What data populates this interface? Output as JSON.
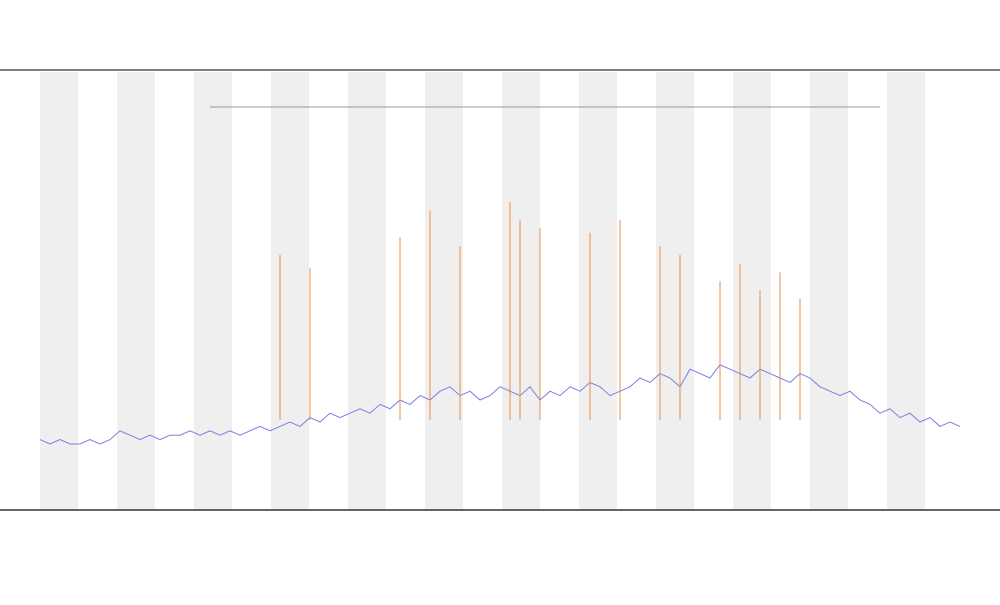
{
  "chart_data": {
    "type": "line",
    "x": [
      0,
      1,
      2,
      3,
      4,
      5,
      6,
      7,
      8,
      9,
      10,
      11,
      12,
      13,
      14,
      15,
      16,
      17,
      18,
      19,
      20,
      21,
      22,
      23,
      24,
      25,
      26,
      27,
      28,
      29,
      30,
      31,
      32,
      33,
      34,
      35,
      36,
      37,
      38,
      39,
      40,
      41,
      42,
      43,
      44,
      45,
      46,
      47,
      48,
      49,
      50,
      51,
      52,
      53,
      54,
      55,
      56,
      57,
      58,
      59,
      60,
      61,
      62,
      63,
      64,
      65,
      66,
      67,
      68,
      69,
      70,
      71,
      72,
      73,
      74,
      75,
      76,
      77,
      78,
      79,
      80,
      81,
      82,
      83,
      84,
      85,
      86,
      87,
      88,
      89,
      90,
      91,
      92
    ],
    "xlim": [
      0,
      92
    ],
    "ylim": [
      0,
      100
    ],
    "series": [
      {
        "color": "#7b7ee0",
        "mark": "line",
        "values": [
          16,
          15,
          16,
          15,
          15,
          16,
          15,
          16,
          18,
          17,
          16,
          17,
          16,
          17,
          17,
          18,
          17,
          18,
          17,
          18,
          17,
          18,
          19,
          18,
          19,
          20,
          19,
          21,
          20,
          22,
          21,
          22,
          23,
          22,
          24,
          23,
          25,
          24,
          26,
          25,
          27,
          28,
          26,
          27,
          25,
          26,
          28,
          27,
          26,
          28,
          25,
          27,
          26,
          28,
          27,
          29,
          28,
          26,
          27,
          28,
          30,
          29,
          31,
          30,
          28,
          32,
          31,
          30,
          33,
          32,
          31,
          30,
          32,
          31,
          30,
          29,
          31,
          30,
          28,
          27,
          26,
          27,
          25,
          24,
          22,
          23,
          21,
          22,
          20,
          21,
          19,
          20,
          19
        ]
      },
      {
        "color": "#f08a3a",
        "mark": "stem",
        "values": [
          null,
          null,
          null,
          null,
          null,
          null,
          null,
          null,
          null,
          null,
          null,
          null,
          null,
          null,
          null,
          null,
          null,
          null,
          null,
          null,
          null,
          null,
          null,
          null,
          58,
          null,
          null,
          55,
          null,
          null,
          null,
          null,
          null,
          null,
          null,
          null,
          62,
          null,
          null,
          68,
          null,
          null,
          60,
          null,
          null,
          null,
          null,
          70,
          66,
          null,
          64,
          null,
          null,
          null,
          null,
          63,
          null,
          null,
          66,
          null,
          null,
          null,
          60,
          null,
          58,
          null,
          null,
          null,
          52,
          null,
          56,
          null,
          50,
          null,
          54,
          null,
          48,
          null,
          null,
          null,
          null,
          null,
          null,
          null,
          null,
          null,
          null,
          null,
          null,
          null,
          null,
          null,
          null
        ]
      }
    ]
  }
}
